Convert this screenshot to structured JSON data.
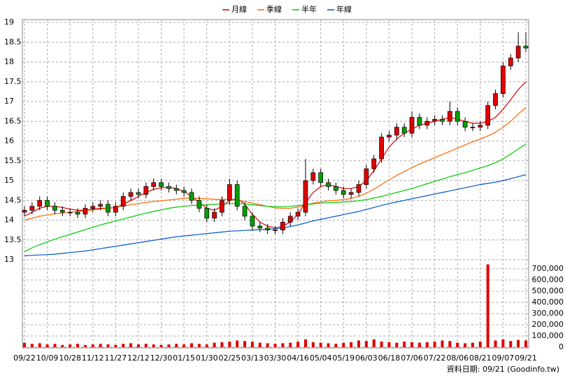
{
  "chart_data": {
    "type": "candlestick",
    "categories": [
      "09/22",
      null,
      null,
      "10/09",
      null,
      null,
      "10/28",
      null,
      null,
      "11/12",
      null,
      null,
      "11/27",
      null,
      null,
      "12/12",
      null,
      null,
      "12/30",
      null,
      null,
      "01/15",
      null,
      null,
      "01/30",
      null,
      null,
      "02/25",
      null,
      null,
      "03/13",
      null,
      null,
      "03/30",
      null,
      null,
      "04/16",
      null,
      null,
      "05/04",
      null,
      null,
      "05/19",
      null,
      null,
      "06/03",
      null,
      null,
      "06/18",
      null,
      null,
      "07/06",
      null,
      null,
      "07/22",
      null,
      null,
      "08/06",
      null,
      null,
      "08/21",
      null,
      null,
      "09/07",
      null,
      null,
      "09/21"
    ],
    "open": [
      14.2,
      14.25,
      14.35,
      14.5,
      14.35,
      14.25,
      14.2,
      14.2,
      14.15,
      14.3,
      14.35,
      14.4,
      14.2,
      14.35,
      14.6,
      14.7,
      14.65,
      14.85,
      14.95,
      14.85,
      14.8,
      14.75,
      14.7,
      14.5,
      14.3,
      14.05,
      14.2,
      14.5,
      14.9,
      14.35,
      14.1,
      13.85,
      13.8,
      13.75,
      13.75,
      13.95,
      14.1,
      14.2,
      15.0,
      15.2,
      14.95,
      14.85,
      14.75,
      14.65,
      14.7,
      14.9,
      15.3,
      15.55,
      16.1,
      16.15,
      16.35,
      16.2,
      16.6,
      16.4,
      16.5,
      16.55,
      16.5,
      16.75,
      16.5,
      16.35,
      16.35,
      16.4,
      16.9,
      17.2,
      17.9,
      18.1,
      18.4
    ],
    "high": [
      14.35,
      14.45,
      14.6,
      14.6,
      14.45,
      14.35,
      14.3,
      14.3,
      14.4,
      14.45,
      14.5,
      14.5,
      14.45,
      14.7,
      14.8,
      14.8,
      14.95,
      15.05,
      15.05,
      14.95,
      14.9,
      14.85,
      14.8,
      14.6,
      14.4,
      14.3,
      14.6,
      15.05,
      15.0,
      14.45,
      14.2,
      13.95,
      13.9,
      13.85,
      14.05,
      14.2,
      14.3,
      15.55,
      15.3,
      15.3,
      15.05,
      14.95,
      14.85,
      14.8,
      15.0,
      15.4,
      15.65,
      16.2,
      16.25,
      16.45,
      16.45,
      16.75,
      16.7,
      16.6,
      16.65,
      16.65,
      17.0,
      16.85,
      16.6,
      16.45,
      16.5,
      17.0,
      17.3,
      18.0,
      18.2,
      18.75,
      18.75
    ],
    "low": [
      14.1,
      14.15,
      14.25,
      14.25,
      14.15,
      14.1,
      14.1,
      14.05,
      14.05,
      14.2,
      14.25,
      14.1,
      14.1,
      14.25,
      14.5,
      14.55,
      14.55,
      14.75,
      14.75,
      14.7,
      14.65,
      14.6,
      14.4,
      14.2,
      13.95,
      13.95,
      14.1,
      14.4,
      14.25,
      14.0,
      13.75,
      13.7,
      13.65,
      13.65,
      13.65,
      13.85,
      14.0,
      14.1,
      14.9,
      14.85,
      14.75,
      14.65,
      14.55,
      14.55,
      14.6,
      14.8,
      15.2,
      15.45,
      16.0,
      16.05,
      16.1,
      16.1,
      16.3,
      16.3,
      16.4,
      16.4,
      16.4,
      16.4,
      16.25,
      16.25,
      16.25,
      16.3,
      16.8,
      17.1,
      17.8,
      18.0,
      18.25
    ],
    "close": [
      14.25,
      14.35,
      14.5,
      14.35,
      14.25,
      14.2,
      14.2,
      14.15,
      14.3,
      14.35,
      14.4,
      14.2,
      14.35,
      14.6,
      14.7,
      14.65,
      14.85,
      14.95,
      14.85,
      14.8,
      14.75,
      14.7,
      14.5,
      14.3,
      14.05,
      14.2,
      14.5,
      14.9,
      14.35,
      14.1,
      13.85,
      13.8,
      13.75,
      13.75,
      13.95,
      14.1,
      14.2,
      15.0,
      15.2,
      14.95,
      14.85,
      14.75,
      14.65,
      14.7,
      14.9,
      15.3,
      15.55,
      16.1,
      16.15,
      16.35,
      16.2,
      16.6,
      16.4,
      16.5,
      16.55,
      16.5,
      16.75,
      16.5,
      16.35,
      16.35,
      16.4,
      16.9,
      17.2,
      17.9,
      18.1,
      18.4,
      18.35
    ],
    "up_color": "#e00000",
    "down_color": "#00a000",
    "series": [
      {
        "name": "月線",
        "color": "#e00000",
        "values": [
          14.1,
          14.2,
          14.3,
          14.35,
          14.35,
          14.32,
          14.28,
          14.25,
          14.25,
          14.28,
          14.3,
          14.3,
          14.32,
          14.4,
          14.5,
          14.6,
          14.7,
          14.78,
          14.82,
          14.83,
          14.8,
          14.72,
          14.6,
          14.45,
          14.3,
          14.25,
          14.35,
          14.5,
          14.55,
          14.4,
          14.15,
          13.95,
          13.85,
          13.8,
          13.85,
          13.95,
          14.15,
          14.45,
          14.7,
          14.85,
          14.9,
          14.85,
          14.8,
          14.8,
          14.85,
          15.0,
          15.25,
          15.55,
          15.85,
          16.05,
          16.2,
          16.3,
          16.4,
          16.45,
          16.5,
          16.55,
          16.6,
          16.55,
          16.5,
          16.45,
          16.45,
          16.5,
          16.6,
          16.8,
          17.05,
          17.3,
          17.5
        ]
      },
      {
        "name": "季線",
        "color": "#ff6600",
        "values": [
          14.0,
          14.05,
          14.1,
          14.13,
          14.16,
          14.18,
          14.2,
          14.22,
          14.24,
          14.26,
          14.28,
          14.3,
          14.33,
          14.36,
          14.39,
          14.42,
          14.45,
          14.47,
          14.49,
          14.51,
          14.53,
          14.55,
          14.56,
          14.55,
          14.54,
          14.53,
          14.53,
          14.52,
          14.5,
          14.47,
          14.43,
          14.39,
          14.35,
          14.31,
          14.3,
          14.3,
          14.33,
          14.38,
          14.43,
          14.46,
          14.49,
          14.5,
          14.52,
          14.55,
          14.6,
          14.68,
          14.78,
          14.9,
          15.02,
          15.13,
          15.23,
          15.33,
          15.42,
          15.5,
          15.58,
          15.66,
          15.74,
          15.82,
          15.9,
          15.98,
          16.05,
          16.13,
          16.22,
          16.35,
          16.5,
          16.68,
          16.85
        ]
      },
      {
        "name": "半年",
        "color": "#00cc00",
        "values": [
          13.2,
          13.3,
          13.38,
          13.45,
          13.52,
          13.58,
          13.64,
          13.7,
          13.76,
          13.82,
          13.88,
          13.93,
          13.98,
          14.03,
          14.08,
          14.13,
          14.18,
          14.22,
          14.26,
          14.3,
          14.33,
          14.35,
          14.37,
          14.38,
          14.39,
          14.4,
          14.41,
          14.42,
          14.42,
          14.41,
          14.39,
          14.37,
          14.35,
          14.34,
          14.34,
          14.35,
          14.37,
          14.39,
          14.41,
          14.43,
          14.44,
          14.45,
          14.46,
          14.47,
          14.49,
          14.52,
          14.56,
          14.6,
          14.65,
          14.7,
          14.75,
          14.8,
          14.86,
          14.92,
          14.98,
          15.04,
          15.1,
          15.15,
          15.2,
          15.26,
          15.32,
          15.38,
          15.45,
          15.55,
          15.67,
          15.8,
          15.92
        ]
      },
      {
        "name": "年線",
        "color": "#0055cc",
        "values": [
          13.1,
          13.11,
          13.12,
          13.13,
          13.14,
          13.16,
          13.18,
          13.2,
          13.22,
          13.25,
          13.28,
          13.31,
          13.34,
          13.37,
          13.4,
          13.43,
          13.46,
          13.49,
          13.52,
          13.55,
          13.58,
          13.6,
          13.62,
          13.64,
          13.66,
          13.68,
          13.7,
          13.72,
          13.73,
          13.74,
          13.75,
          13.76,
          13.77,
          13.78,
          13.8,
          13.84,
          13.88,
          13.93,
          13.98,
          14.02,
          14.06,
          14.1,
          14.14,
          14.18,
          14.22,
          14.27,
          14.32,
          14.37,
          14.42,
          14.46,
          14.5,
          14.54,
          14.58,
          14.62,
          14.66,
          14.7,
          14.74,
          14.78,
          14.82,
          14.86,
          14.9,
          14.93,
          14.96,
          15.0,
          15.05,
          15.1,
          15.15
        ]
      }
    ],
    "ylim": [
      13,
      19
    ],
    "yticks": [
      13,
      13.5,
      14,
      14.5,
      15,
      15.5,
      16,
      16.5,
      17,
      17.5,
      18,
      18.5,
      19
    ],
    "volume": {
      "color": "#e00000",
      "values": [
        40000,
        30000,
        35000,
        25000,
        30000,
        20000,
        25000,
        30000,
        20000,
        25000,
        30000,
        25000,
        20000,
        30000,
        35000,
        25000,
        30000,
        25000,
        20000,
        25000,
        30000,
        25000,
        35000,
        30000,
        25000,
        40000,
        45000,
        50000,
        60000,
        55000,
        50000,
        40000,
        35000,
        30000,
        35000,
        40000,
        50000,
        70000,
        45000,
        40000,
        35000,
        30000,
        40000,
        45000,
        60000,
        55000,
        70000,
        50000,
        45000,
        40000,
        50000,
        45000,
        40000,
        45000,
        50000,
        60000,
        55000,
        40000,
        35000,
        40000,
        50000,
        740000,
        60000,
        70000,
        55000,
        65000,
        60000
      ],
      "ylim": [
        0,
        700000
      ],
      "yticks": [
        0,
        {
          "value": 100000,
          "label": "100,000"
        },
        {
          "value": 200000,
          "label": "200,000"
        },
        {
          "value": 300000,
          "label": "300,000"
        },
        {
          "value": 400000,
          "label": "400,000"
        },
        {
          "value": 500000,
          "label": "500,000"
        },
        {
          "value": 600000,
          "label": "600,000"
        },
        {
          "value": 700000,
          "label": "700,000"
        }
      ]
    },
    "grid": true,
    "legend_position": "top",
    "source": "資料日期: 09/21 (Goodinfo.tw)"
  }
}
